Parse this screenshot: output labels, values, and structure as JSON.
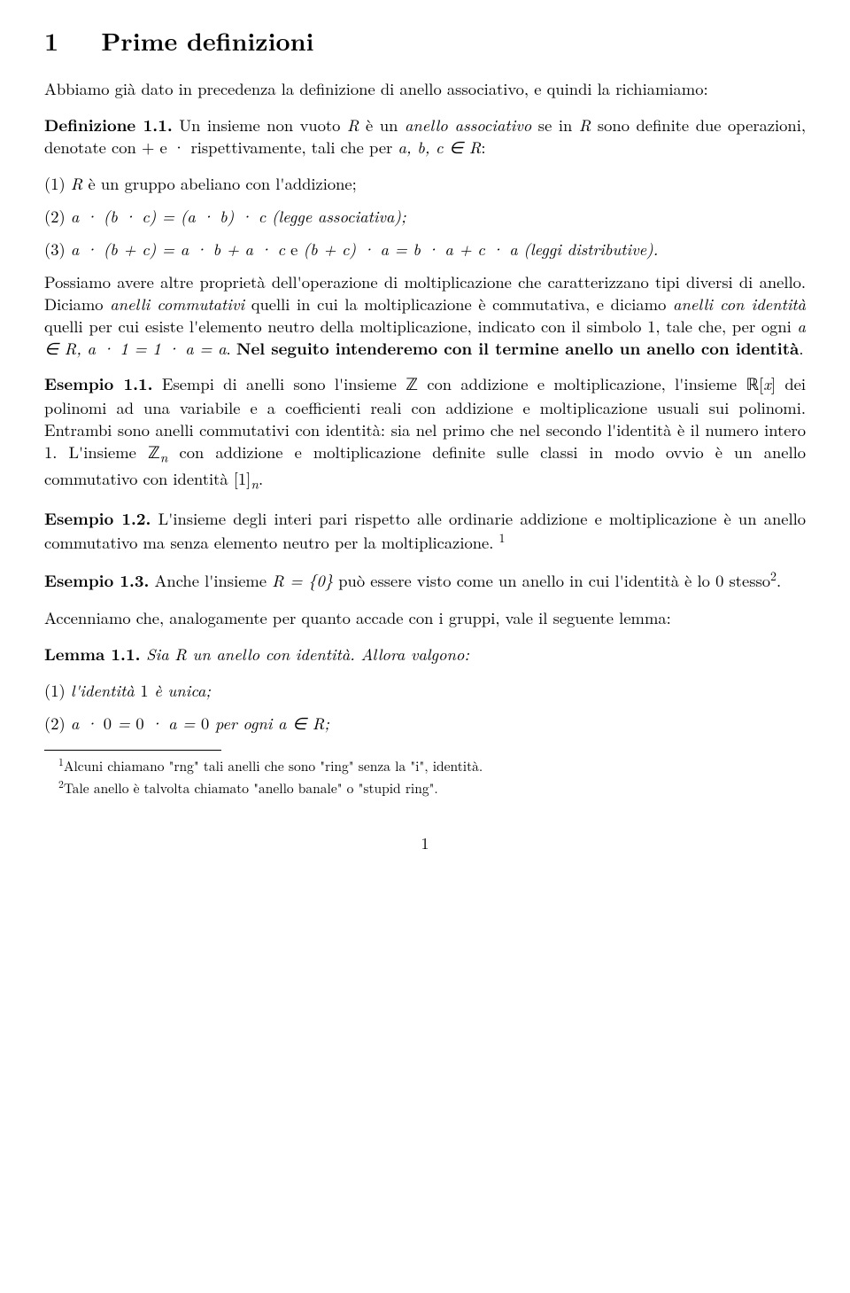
{
  "section": {
    "number": "1",
    "title": "Prime definizioni"
  },
  "intro": "Abbiamo già dato in precedenza la definizione di anello associativo, e quindi la richiamiamo:",
  "def11": {
    "label": "Definizione 1.1.",
    "text_before": " Un insieme non vuoto ",
    "text_mid1": " è un ",
    "anello": "anello associativo",
    "text_mid2": " se in ",
    "text_after": " sono definite due operazioni, denotate con + e · rispettivamente, tali che per "
  },
  "items": {
    "i1_pre": "(1) ",
    "i1": "R è un gruppo abeliano con l'addizione;",
    "i2_pre": "(2) ",
    "i2_math": "a · (b · c) = (a · b) · c",
    "i2_post": " (legge associativa);",
    "i3_pre": "(3) ",
    "i3_math": "a · (b + c) = a · b + a · c  e  (b + c) · a = b · a + c · a",
    "i3_post": " (leggi distributive)."
  },
  "para2a": "Possiamo avere altre proprietà dell'operazione di moltiplicazione che caratterizzano tipi diversi di anello. Diciamo ",
  "anelli_comm": "anelli commutativi",
  "para2b": " quelli in cui la moltiplicazione è commutativa, e diciamo ",
  "anelli_id": "anelli con identità",
  "para2c": " quelli per cui esiste l'elemento neutro della moltiplicazione, indicato con il simbolo 1, tale che, per ogni ",
  "para2d": ". ",
  "bold_text": "Nel seguito intenderemo con il termine anello un anello con identità",
  "period": ".",
  "es11": {
    "label": "Esempio 1.1.",
    "text": " Esempi di anelli sono l'insieme ℤ con addizione e moltiplicazione, l'insieme ℝ[x] dei polinomi ad una variabile e a coefficienti reali con addizione e moltiplicazione usuali sui polinomi. Entrambi sono anelli commutativi con identità: sia nel primo che nel secondo l'identità è il numero intero 1. L'insieme ℤₙ con addizione e moltiplicazione definite sulle classi in modo ovvio è un anello commutativo con identità [1]ₙ."
  },
  "es12": {
    "label": "Esempio 1.2.",
    "text": " L'insieme degli interi pari rispetto alle ordinarie addizione e moltiplicazione è un anello commutativo ma senza elemento neutro per la moltiplicazione. "
  },
  "es13": {
    "label": "Esempio 1.3.",
    "text_a": " Anche l'insieme ",
    "math": "R = {0}",
    "text_b": " può essere visto come un anello in cui l'identità è lo 0 stesso"
  },
  "para3": "Accenniamo che, analogamente per quanto accade con i gruppi, vale il seguente lemma:",
  "lemma11": {
    "label": "Lemma 1.1.",
    "text": " Sia R un anello con identità. Allora valgono:"
  },
  "lemma_items": {
    "l1_pre": "(1) ",
    "l1": "l'identità 1 è unica;",
    "l2_pre": "(2) ",
    "l2": "a · 0 = 0 · a = 0 per ogni a ∈ R;"
  },
  "footnotes": {
    "f1": "Alcuni chiamano \"rng\" tali anelli che sono \"ring\" senza la \"i\", identità.",
    "f2": "Tale anello è talvolta chiamato \"anello banale\" o \"stupid ring\"."
  },
  "pagenum": "1"
}
